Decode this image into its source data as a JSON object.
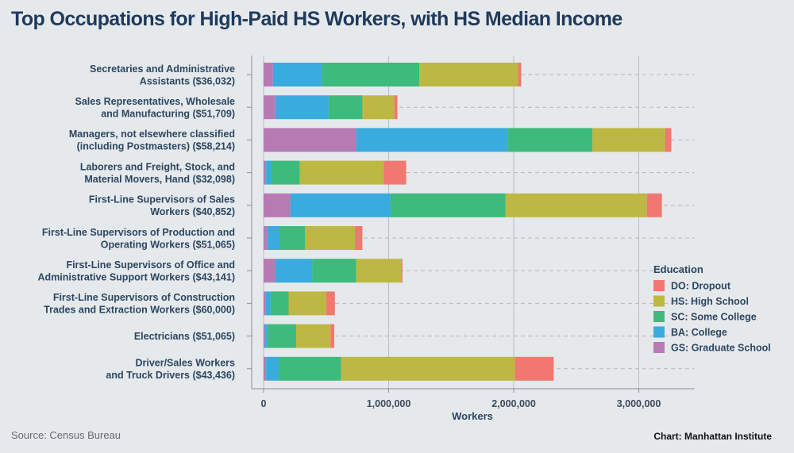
{
  "title": "Top Occupations for High-Paid HS Workers, with HS Median Income",
  "source": "Source: Census Bureau",
  "credit": "Chart: Manhattan Institute",
  "chart_data": {
    "type": "bar",
    "orientation": "horizontal",
    "stacked": true,
    "categories": [
      [
        "Secretaries and Administrative",
        "Assistants ($36,032)"
      ],
      [
        "Sales Representatives, Wholesale",
        "and Manufacturing  ($51,709)"
      ],
      [
        "Managers, not elsewhere classified",
        "(including Postmasters) ($58,214)"
      ],
      [
        "Laborers and Freight, Stock, and",
        "Material Movers, Hand ($32,098)"
      ],
      [
        "First-Line Supervisors of Sales",
        "Workers ($40,852)"
      ],
      [
        "First-Line Supervisors of Production and",
        "Operating Workers ($51,065)"
      ],
      [
        "First-Line Supervisors of Office and",
        "Administrative Support Workers ($43,141)"
      ],
      [
        "First-Line Supervisors of Construction",
        "Trades and Extraction Workers  ($60,000)"
      ],
      [
        "Electricians ($51,065)"
      ],
      [
        "Driver/Sales Workers",
        "and Truck Drivers ($43,436)"
      ]
    ],
    "series": [
      {
        "name": "GS: Graduate School",
        "color": "#b77bb4",
        "values": [
          75000,
          90000,
          740000,
          20000,
          215000,
          30000,
          95000,
          15000,
          10000,
          20000
        ]
      },
      {
        "name": "BA: College",
        "color": "#3aabde",
        "values": [
          390000,
          430000,
          1210000,
          40000,
          800000,
          100000,
          295000,
          40000,
          20000,
          100000
        ]
      },
      {
        "name": "SC: Some College",
        "color": "#3dba7c",
        "values": [
          780000,
          270000,
          680000,
          230000,
          920000,
          200000,
          350000,
          145000,
          230000,
          500000
        ]
      },
      {
        "name": "HS: High School",
        "color": "#bcb843",
        "values": [
          790000,
          255000,
          580000,
          670000,
          1130000,
          400000,
          360000,
          300000,
          275000,
          1390000
        ]
      },
      {
        "name": "DO: Dropout",
        "color": "#f07870",
        "values": [
          25000,
          25000,
          50000,
          180000,
          120000,
          60000,
          10000,
          70000,
          30000,
          310000
        ]
      }
    ],
    "legend_title": "Education",
    "legend_order": [
      "DO: Dropout",
      "HS: High School",
      "SC: Some College",
      "BA: College",
      "GS: Graduate School"
    ],
    "legend_position": "right",
    "xlabel": "Workers",
    "xticks": [
      0,
      1000000,
      2000000,
      3000000
    ],
    "xtick_labels": [
      "0",
      "1,000,000",
      "2,000,000",
      "3,000,000"
    ],
    "xlim": [
      0,
      3400000
    ],
    "grid": "vertical lines at x ticks, dashed row guides",
    "colors": {
      "background": "#e6e9ec",
      "title": "#1e3a5c",
      "label": "#2b4662"
    }
  }
}
